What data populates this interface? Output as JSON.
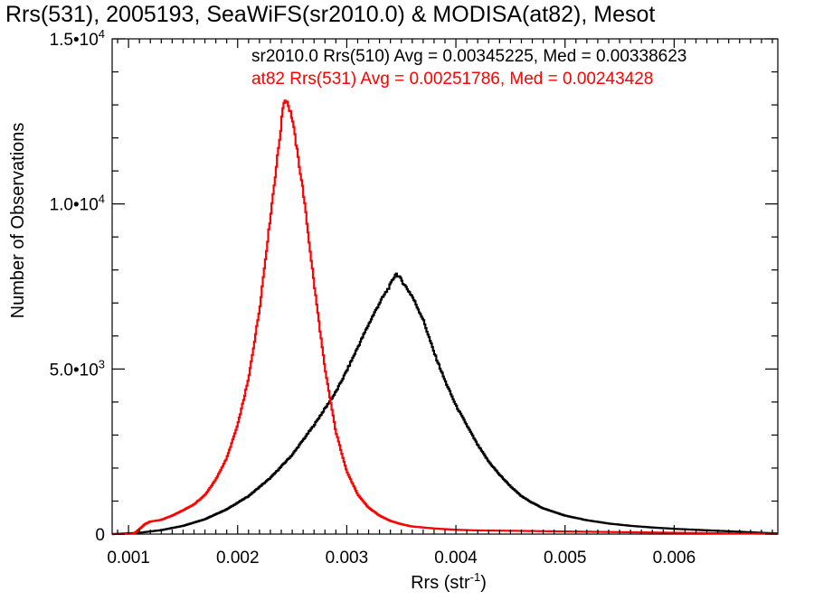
{
  "chart_data": {
    "type": "line",
    "title": "Rrs(531), 2005193, SeaWiFS(sr2010.0) & MODISA(at82), Mesot",
    "xlabel": "Rrs (str",
    "xlabel_sup": "-1",
    "xlabel_end": ")",
    "ylabel": "Number of Observations",
    "xlim": [
      0.00085,
      0.00695
    ],
    "ylim": [
      0,
      15000
    ],
    "x_ticks": [
      {
        "value": 0.001,
        "label": "0.001"
      },
      {
        "value": 0.002,
        "label": "0.002"
      },
      {
        "value": 0.003,
        "label": "0.003"
      },
      {
        "value": 0.004,
        "label": "0.004"
      },
      {
        "value": 0.005,
        "label": "0.005"
      },
      {
        "value": 0.006,
        "label": "0.006"
      }
    ],
    "y_ticks": [
      {
        "value": 0,
        "mantissa": "0",
        "exp": ""
      },
      {
        "value": 5000,
        "mantissa": "5.0•10",
        "exp": "3"
      },
      {
        "value": 10000,
        "mantissa": "1.0•10",
        "exp": "4"
      },
      {
        "value": 15000,
        "mantissa": "1.5•10",
        "exp": "4"
      }
    ],
    "legend_position": "top-right",
    "grid": false,
    "series": [
      {
        "name": "sr2010.0 Rrs(510) Avg = 0.00345225, Med = 0.00338623",
        "color": "#000000",
        "points": [
          [
            0.00085,
            0
          ],
          [
            0.0011,
            40
          ],
          [
            0.0013,
            120
          ],
          [
            0.0015,
            250
          ],
          [
            0.0017,
            450
          ],
          [
            0.0019,
            750
          ],
          [
            0.0021,
            1150
          ],
          [
            0.0023,
            1700
          ],
          [
            0.0025,
            2400
          ],
          [
            0.0027,
            3300
          ],
          [
            0.0029,
            4300
          ],
          [
            0.003,
            4950
          ],
          [
            0.0031,
            5650
          ],
          [
            0.0032,
            6350
          ],
          [
            0.0033,
            7000
          ],
          [
            0.0034,
            7550
          ],
          [
            0.00345,
            7900
          ],
          [
            0.0035,
            7700
          ],
          [
            0.0036,
            7200
          ],
          [
            0.0037,
            6500
          ],
          [
            0.0038,
            5500
          ],
          [
            0.0039,
            4650
          ],
          [
            0.004,
            3900
          ],
          [
            0.0041,
            3300
          ],
          [
            0.0042,
            2700
          ],
          [
            0.0043,
            2200
          ],
          [
            0.0044,
            1800
          ],
          [
            0.0045,
            1450
          ],
          [
            0.0046,
            1150
          ],
          [
            0.0047,
            950
          ],
          [
            0.0048,
            780
          ],
          [
            0.005,
            560
          ],
          [
            0.0052,
            420
          ],
          [
            0.0054,
            320
          ],
          [
            0.0056,
            250
          ],
          [
            0.0058,
            200
          ],
          [
            0.006,
            160
          ],
          [
            0.0062,
            130
          ],
          [
            0.0064,
            100
          ],
          [
            0.0066,
            70
          ],
          [
            0.0068,
            40
          ],
          [
            0.00695,
            20
          ]
        ]
      },
      {
        "name": "at82 Rrs(531) Avg = 0.00251786, Med = 0.00243428",
        "color": "#ff0000",
        "points": [
          [
            0.00085,
            0
          ],
          [
            0.00105,
            10
          ],
          [
            0.0011,
            150
          ],
          [
            0.00115,
            300
          ],
          [
            0.0012,
            380
          ],
          [
            0.0013,
            430
          ],
          [
            0.0014,
            560
          ],
          [
            0.0015,
            720
          ],
          [
            0.0016,
            900
          ],
          [
            0.0017,
            1180
          ],
          [
            0.0018,
            1650
          ],
          [
            0.0019,
            2300
          ],
          [
            0.002,
            3300
          ],
          [
            0.0021,
            4700
          ],
          [
            0.0022,
            6800
          ],
          [
            0.0023,
            9600
          ],
          [
            0.0024,
            12400
          ],
          [
            0.00242,
            13100
          ],
          [
            0.00245,
            13150
          ],
          [
            0.0025,
            12600
          ],
          [
            0.0026,
            10400
          ],
          [
            0.0027,
            7600
          ],
          [
            0.0028,
            5000
          ],
          [
            0.0029,
            3100
          ],
          [
            0.003,
            1900
          ],
          [
            0.0031,
            1200
          ],
          [
            0.0032,
            800
          ],
          [
            0.0033,
            560
          ],
          [
            0.0034,
            400
          ],
          [
            0.0035,
            300
          ],
          [
            0.0036,
            230
          ],
          [
            0.0038,
            170
          ],
          [
            0.004,
            130
          ],
          [
            0.0042,
            110
          ],
          [
            0.0045,
            100
          ],
          [
            0.005,
            80
          ],
          [
            0.0055,
            60
          ],
          [
            0.006,
            40
          ],
          [
            0.0065,
            20
          ],
          [
            0.00695,
            10
          ]
        ]
      }
    ]
  }
}
